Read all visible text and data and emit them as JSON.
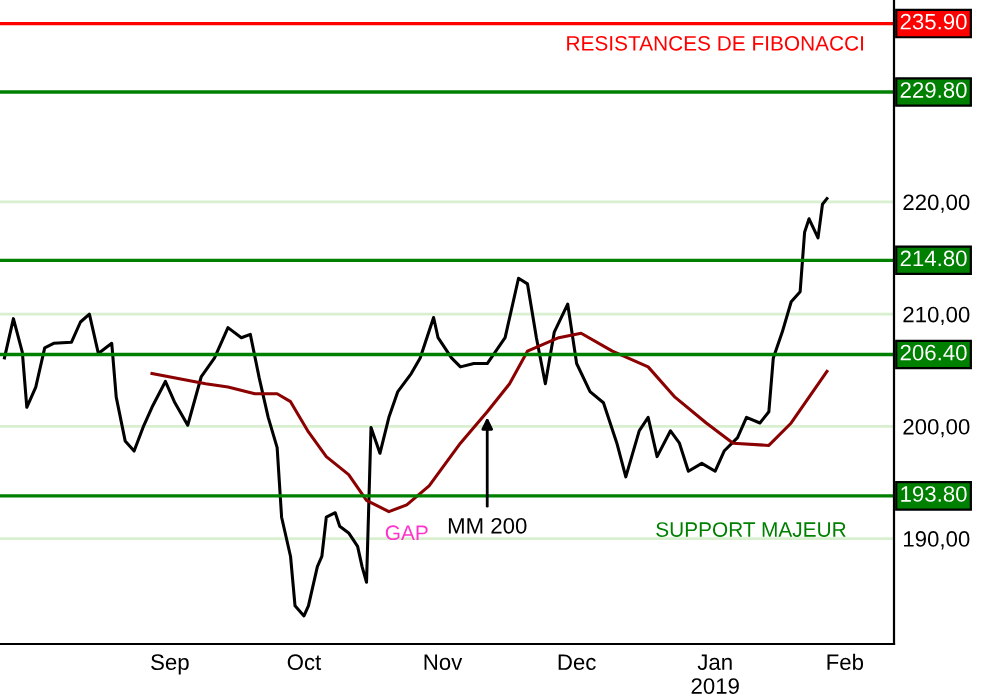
{
  "chart_data": {
    "type": "line",
    "series": [
      {
        "color": "#000000",
        "x": [
          "2018-08-10",
          "2018-08-12",
          "2018-08-14",
          "2018-08-15",
          "2018-08-17",
          "2018-08-19",
          "2018-08-21",
          "2018-08-25",
          "2018-08-27",
          "2018-08-29",
          "2018-08-31",
          "2018-09-03",
          "2018-09-04",
          "2018-09-06",
          "2018-09-08",
          "2018-09-10",
          "2018-09-12",
          "2018-09-15",
          "2018-09-17",
          "2018-09-20",
          "2018-09-23",
          "2018-09-26",
          "2018-09-29",
          "2018-10-02",
          "2018-10-04",
          "2018-10-06",
          "2018-10-08",
          "2018-10-10",
          "2018-10-11",
          "2018-10-13",
          "2018-10-14",
          "2018-10-16",
          "2018-10-17",
          "2018-10-19",
          "2018-10-20",
          "2018-10-21",
          "2018-10-23",
          "2018-10-24",
          "2018-10-26",
          "2018-10-28",
          "2018-10-29",
          "2018-10-30",
          "2018-10-31",
          "2018-11-02",
          "2018-11-04",
          "2018-11-06",
          "2018-11-09",
          "2018-11-11",
          "2018-11-14",
          "2018-11-15",
          "2018-11-18",
          "2018-11-20",
          "2018-11-23",
          "2018-11-26",
          "2018-11-30",
          "2018-12-03",
          "2018-12-05",
          "2018-12-07",
          "2018-12-09",
          "2018-12-11",
          "2018-12-14",
          "2018-12-16",
          "2018-12-19",
          "2018-12-22",
          "2018-12-25",
          "2018-12-27",
          "2018-12-30",
          "2019-01-01",
          "2019-01-03",
          "2019-01-06",
          "2019-01-08",
          "2019-01-10",
          "2019-01-13",
          "2019-01-16",
          "2019-01-18",
          "2019-01-21",
          "2019-01-23",
          "2019-01-26",
          "2019-01-28",
          "2019-01-29",
          "2019-01-31",
          "2019-02-02",
          "2019-02-04",
          "2019-02-05",
          "2019-02-06",
          "2019-02-08",
          "2019-02-09",
          "2019-02-10"
        ],
        "values": [
          206.1,
          209.6,
          206.6,
          201.7,
          203.5,
          207,
          207.4,
          207.5,
          209.3,
          210,
          206.5,
          207.4,
          202.6,
          198.7,
          197.8,
          199.9,
          201.7,
          204,
          202.2,
          200.1,
          204.4,
          206.1,
          208.8,
          207.9,
          208.2,
          204.3,
          200.8,
          198.1,
          191.9,
          188.4,
          184,
          183.1,
          184,
          187.5,
          188.4,
          191.9,
          192.3,
          191.1,
          190.5,
          189.3,
          187.5,
          186.1,
          199.9,
          197.6,
          200.8,
          203.1,
          204.7,
          206.1,
          209.7,
          207.9,
          206.1,
          205.3,
          205.6,
          205.6,
          207.9,
          213.2,
          212.7,
          207.9,
          203.8,
          208.4,
          210.9,
          205.6,
          203.1,
          202.1,
          198.5,
          195.5,
          199.6,
          200.8,
          197.3,
          199.6,
          198.5,
          196,
          196.7,
          196,
          197.8,
          199,
          200.8,
          200.3,
          201.3,
          206.1,
          208.4,
          211.1,
          212,
          217.3,
          218.5,
          216.8,
          219.8,
          220.3
        ]
      },
      {
        "color": "#8b0000",
        "x": [
          "2018-09-12",
          "2018-09-24",
          "2018-09-29",
          "2018-10-05",
          "2018-10-10",
          "2018-10-13",
          "2018-10-17",
          "2018-10-21",
          "2018-10-26",
          "2018-10-30",
          "2018-11-04",
          "2018-11-08",
          "2018-11-13",
          "2018-11-20",
          "2018-11-26",
          "2018-12-01",
          "2018-12-05",
          "2018-12-12",
          "2018-12-17",
          "2018-12-24",
          "2019-01-01",
          "2019-01-07",
          "2019-01-14",
          "2019-01-20",
          "2019-01-28",
          "2019-02-02",
          "2019-02-10"
        ],
        "values": [
          204.7,
          203.8,
          203.5,
          202.9,
          202.9,
          202.2,
          199.5,
          197.3,
          195.7,
          193.4,
          192.4,
          193,
          194.7,
          198.5,
          201.3,
          203.8,
          206.7,
          207.9,
          208.3,
          206.7,
          205.3,
          202.6,
          200.3,
          198.5,
          198.3,
          200.3,
          204.9
        ]
      }
    ],
    "xlim": [
      "2018-08-09",
      "2019-02-25"
    ],
    "xticks": [
      {
        "value": "2018-09-16",
        "label": "Sep"
      },
      {
        "value": "2018-10-16",
        "label": "Oct"
      },
      {
        "value": "2018-11-16",
        "label": "Nov"
      },
      {
        "value": "2018-12-16",
        "label": "Dec"
      },
      {
        "value": "2019-01-16",
        "label": "Jan\n2019"
      },
      {
        "value": "2019-02-14",
        "label": "Feb"
      }
    ],
    "ylim": [
      180.6,
      238
    ],
    "yticks": [
      {
        "value": 190,
        "label": "190,00"
      },
      {
        "value": 200,
        "label": "200,00"
      },
      {
        "value": 210,
        "label": "210,00"
      },
      {
        "value": 220,
        "label": "220,00"
      }
    ],
    "grid": "y",
    "ref_lines": [
      {
        "axis": "y",
        "value": 235.9,
        "label": "235.90",
        "color": "#ff0000"
      },
      {
        "axis": "y",
        "value": 229.8,
        "label": "229.80",
        "color": "#008000"
      },
      {
        "axis": "y",
        "value": 214.8,
        "label": "214.80",
        "color": "#008000"
      },
      {
        "axis": "y",
        "value": 206.4,
        "label": "206.40",
        "color": "#008000"
      },
      {
        "axis": "y",
        "value": 193.8,
        "label": "193.80",
        "color": "#008000"
      }
    ],
    "annotations": [
      "RESISTANCES DE FIBONACCI",
      "SUPPORT MAJEUR",
      "GAP",
      {
        "text": "MM 200",
        "x": "2018-11-26",
        "y": 201.3
      }
    ],
    "legend": false
  }
}
